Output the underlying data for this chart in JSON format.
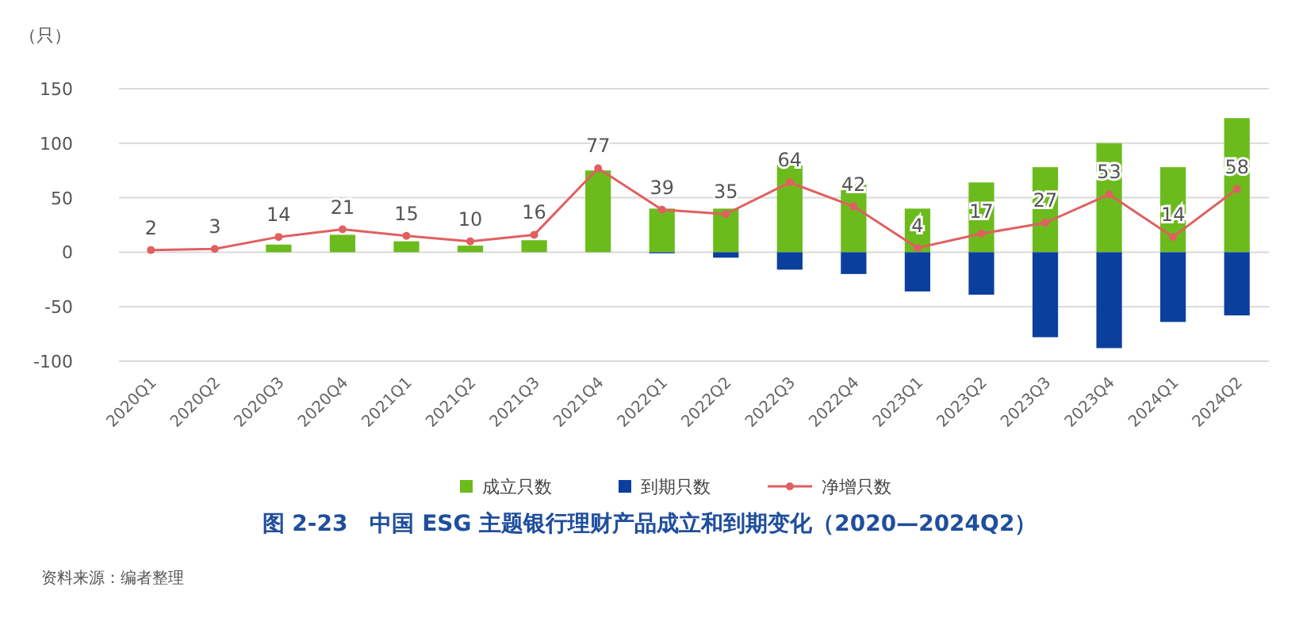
{
  "chart_data": {
    "type": "bar",
    "title": "图 2-23　中国 ESG 主题银行理财产品成立和到期变化（2020—2024Q2）",
    "ylabel": "（只）",
    "categories": [
      "2020Q1",
      "2020Q2",
      "2020Q3",
      "2020Q4",
      "2021Q1",
      "2021Q2",
      "2021Q3",
      "2021Q4",
      "2022Q1",
      "2022Q2",
      "2022Q3",
      "2022Q4",
      "2023Q1",
      "2023Q2",
      "2023Q3",
      "2023Q4",
      "2024Q1",
      "2024Q2"
    ],
    "stacked": true,
    "series": [
      {
        "name": "成立只数",
        "color": "#6cbb1d",
        "values": [
          null,
          null,
          7,
          16,
          10,
          6,
          11,
          75,
          40,
          40,
          80,
          62,
          40,
          64,
          78,
          100,
          78,
          123
        ]
      },
      {
        "name": "到期只数",
        "color": "#0b3f9e",
        "values": [
          null,
          null,
          null,
          null,
          null,
          null,
          null,
          null,
          -1,
          -5,
          -16,
          -20,
          -36,
          -39,
          -78,
          -88,
          -64,
          -58
        ]
      },
      {
        "name": "净增只数",
        "type": "line",
        "color": "#e06060",
        "marker": "circle",
        "values": [
          2,
          3,
          14,
          21,
          15,
          10,
          16,
          77,
          39,
          35,
          64,
          42,
          4,
          17,
          27,
          53,
          14,
          58
        ],
        "value_labels": [
          "2",
          "3",
          "14",
          "21",
          "15",
          "10",
          "16",
          "77",
          "39",
          "35",
          "64",
          "42",
          "4",
          "17",
          "27",
          "53",
          "14",
          "58"
        ]
      }
    ],
    "ylim": [
      -100,
      150
    ],
    "yticks": [
      -100,
      -50,
      0,
      50,
      100,
      150
    ],
    "grid": "y",
    "legend": "bottom",
    "annotations": [
      "资料来源：编者整理"
    ]
  }
}
